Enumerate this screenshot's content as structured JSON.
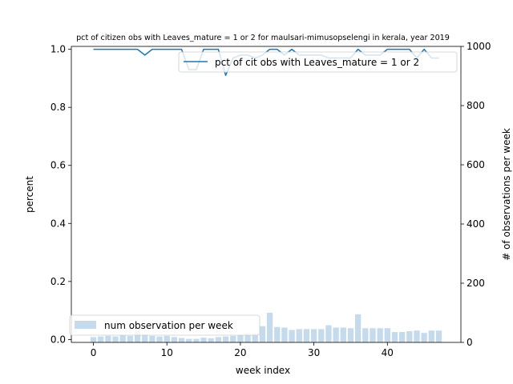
{
  "chart_data": {
    "type": "bar+line",
    "title": "pct of citizen obs with Leaves_mature = 1 or 2 for maulsari-mimusopselengi in kerala, year 2019",
    "xlabel": "week index",
    "ylabel_left": "percent",
    "ylabel_right": "# of observations per week",
    "xlim": [
      -3,
      50
    ],
    "ylim_left": [
      -0.01,
      1.01
    ],
    "ylim_right": [
      0,
      1000
    ],
    "x_ticks": [
      0,
      10,
      20,
      30,
      40
    ],
    "y_left_ticks": [
      "0.0",
      "0.2",
      "0.4",
      "0.6",
      "0.8",
      "1.0"
    ],
    "y_right_ticks": [
      0,
      200,
      400,
      600,
      800,
      1000
    ],
    "grid": false,
    "legend_line_position": "upper-right",
    "legend_bar_position": "lower-left",
    "line_color": "#1f77b4",
    "bar_color": "#c5dbec",
    "series": [
      {
        "name": "pct of cit obs with Leaves_mature = 1 or 2",
        "type": "line",
        "axis": "left",
        "x": [
          0,
          1,
          2,
          3,
          4,
          5,
          6,
          7,
          8,
          9,
          10,
          11,
          12,
          13,
          14,
          15,
          16,
          17,
          18,
          19,
          20,
          21,
          22,
          23,
          24,
          25,
          26,
          27,
          28,
          29,
          30,
          31,
          32,
          33,
          34,
          35,
          36,
          37,
          38,
          39,
          40,
          41,
          42,
          43,
          44,
          45,
          46,
          47
        ],
        "values": [
          1.0,
          1.0,
          1.0,
          1.0,
          1.0,
          1.0,
          1.0,
          0.98,
          1.0,
          1.0,
          1.0,
          1.0,
          1.0,
          0.93,
          0.93,
          1.0,
          1.0,
          1.0,
          0.91,
          0.97,
          0.98,
          0.98,
          0.97,
          0.98,
          1.0,
          1.0,
          0.98,
          1.0,
          0.98,
          0.98,
          0.98,
          0.98,
          0.97,
          0.97,
          0.97,
          0.97,
          1.0,
          0.98,
          0.98,
          0.98,
          1.0,
          1.0,
          1.0,
          1.0,
          0.97,
          1.0,
          0.97,
          0.97
        ]
      },
      {
        "name": "num observation per week",
        "type": "bar",
        "axis": "right",
        "x": [
          0,
          1,
          2,
          3,
          4,
          5,
          6,
          7,
          8,
          9,
          10,
          11,
          12,
          13,
          14,
          15,
          16,
          17,
          18,
          19,
          20,
          21,
          22,
          23,
          24,
          25,
          26,
          27,
          28,
          29,
          30,
          31,
          32,
          33,
          34,
          35,
          36,
          37,
          38,
          39,
          40,
          41,
          42,
          43,
          44,
          45,
          46,
          47
        ],
        "values": [
          18,
          20,
          22,
          20,
          25,
          22,
          40,
          28,
          22,
          20,
          22,
          18,
          15,
          12,
          12,
          16,
          14,
          18,
          20,
          22,
          25,
          32,
          30,
          55,
          100,
          52,
          50,
          42,
          45,
          45,
          45,
          45,
          58,
          50,
          50,
          48,
          95,
          48,
          48,
          48,
          48,
          35,
          35,
          38,
          40,
          32,
          40,
          40
        ]
      }
    ]
  }
}
